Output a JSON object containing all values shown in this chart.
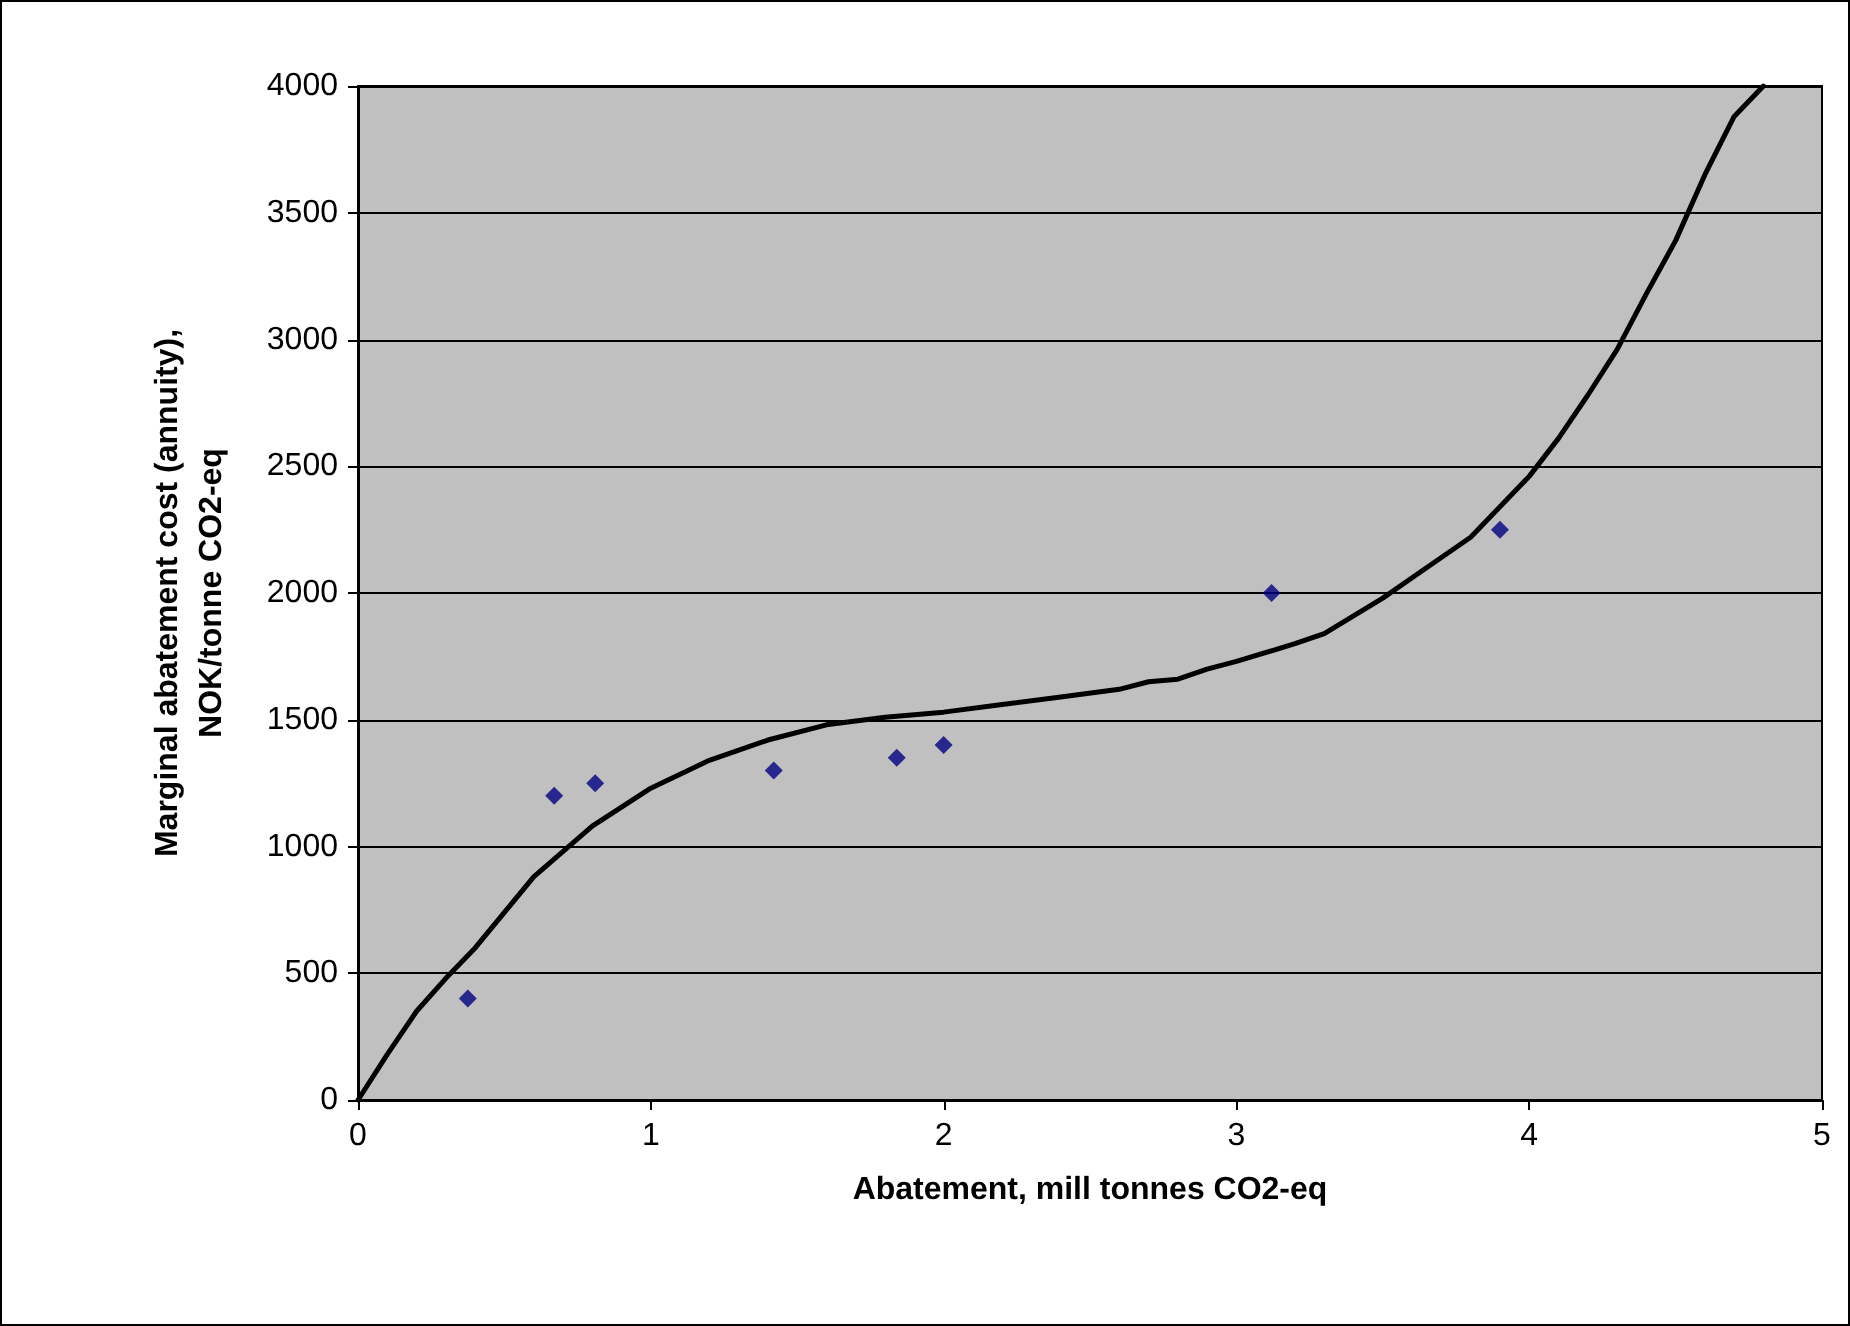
{
  "chart_data": {
    "type": "scatter",
    "xlabel": "Abatement, mill tonnes CO2-eq",
    "ylabel": "Marginal abatement cost (annuity),\nNOK/tonne CO2-eq",
    "xlim": [
      0,
      5
    ],
    "xticks": [
      0,
      1,
      2,
      3,
      4,
      5
    ],
    "ylim": [
      0,
      4000
    ],
    "yticks": [
      0,
      500,
      1000,
      1500,
      2000,
      2500,
      3000,
      3500,
      4000
    ],
    "grid": "y",
    "marker": "diamond",
    "series": [
      {
        "color": "#000080",
        "x": [
          0.375,
          0.67,
          0.81,
          1.42,
          1.84,
          2.0,
          3.12,
          3.9
        ],
        "values": [
          400,
          1200,
          1250,
          1300,
          1350,
          1400,
          2000,
          2250
        ]
      },
      {
        "type": "line",
        "color": "#000000",
        "marker": "none",
        "x": [
          0,
          0.1,
          0.2,
          0.3,
          0.4,
          0.5,
          0.6,
          0.8,
          1.0,
          1.2,
          1.4,
          1.6,
          1.8,
          2.0,
          2.2,
          2.4,
          2.6,
          2.7,
          2.8,
          2.9,
          3.0,
          3.2,
          3.3,
          3.4,
          3.5,
          3.6,
          3.8,
          4.0,
          4.1,
          4.2,
          4.3,
          4.4,
          4.5,
          4.6,
          4.7,
          4.8
        ],
        "values": [
          0,
          180,
          350,
          480,
          600,
          740,
          880,
          1080,
          1230,
          1340,
          1420,
          1480,
          1510,
          1530,
          1560,
          1590,
          1620,
          1650,
          1660,
          1700,
          1730,
          1800,
          1840,
          1910,
          1980,
          2060,
          2220,
          2460,
          2610,
          2780,
          2960,
          3180,
          3390,
          3650,
          3880,
          4000
        ]
      }
    ]
  }
}
